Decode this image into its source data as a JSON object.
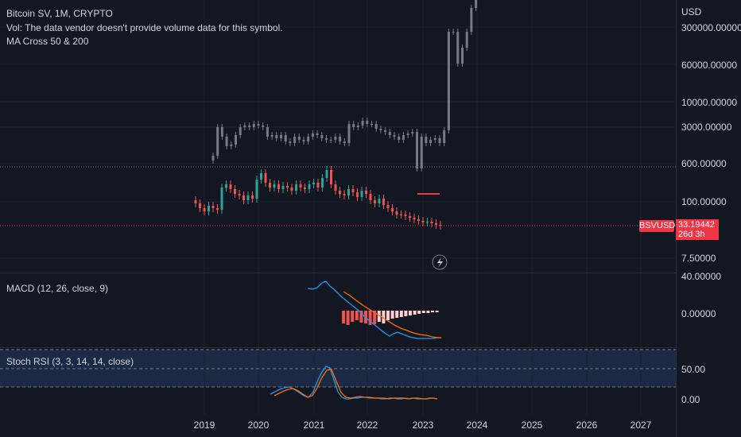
{
  "symbol_legend": "Bitcoin SV, 1M, CRYPTO",
  "vol_legend": "Vol: The data vendor doesn't provide volume data for this symbol.",
  "ma_legend": "MA Cross 50 & 200",
  "macd_legend": "MACD (12, 26, close, 9)",
  "stoch_legend": "Stoch RSI (3, 3, 14, 14, close)",
  "currency": "USD",
  "price_ticks": [
    "300000.00000",
    "60000.00000",
    "10000.00000",
    "3000.00000",
    "600.00000",
    "100.00000",
    "7.50000"
  ],
  "macd_ticks": [
    "40.00000",
    "0.00000"
  ],
  "stoch_ticks": [
    "50.00",
    "0.00"
  ],
  "time_ticks": [
    "2019",
    "2020",
    "2021",
    "2022",
    "2023",
    "2024",
    "2025",
    "2026",
    "2027"
  ],
  "last_price": {
    "symbol": "BSVUSD",
    "value": "33.19442",
    "countdown": "26d 3h"
  },
  "colors": {
    "up": "#26a69a",
    "down": "#ef5350",
    "macd": "#2196f3",
    "signal": "#ff6d00",
    "ma": "#787b86",
    "bg": "#131722"
  }
}
